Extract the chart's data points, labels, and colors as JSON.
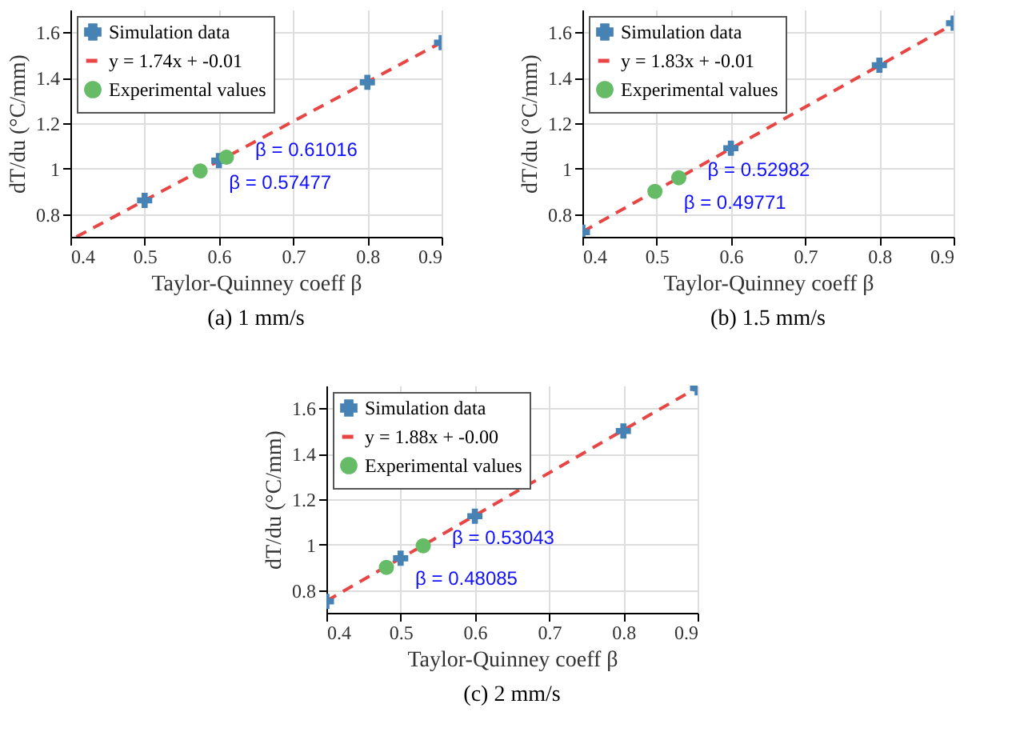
{
  "chart_data": [
    {
      "type": "scatter",
      "title": "(a) 1 mm/s",
      "xlabel": "Taylor-Quinney coeff β",
      "ylabel": "dT/du (°C/mm)",
      "xlim": [
        0.4,
        0.9
      ],
      "ylim": [
        0.7,
        1.7
      ],
      "xticks": [
        0.4,
        0.5,
        0.6,
        0.7,
        0.8,
        0.9
      ],
      "yticks": [
        0.8,
        1,
        1.2,
        1.4,
        1.6
      ],
      "grid": true,
      "legend": "top left",
      "series": [
        {
          "name": "Simulation data",
          "color": "#4682b4",
          "marker": "cross",
          "x": [
            0.5,
            0.6,
            0.8,
            0.9
          ],
          "values": [
            0.86,
            1.035,
            1.38,
            1.555
          ]
        },
        {
          "name": "y = 1.74x + -0.01",
          "type": "line",
          "color": "#e84545",
          "marker": "none",
          "line_style": "dashed",
          "x": [
            0.408,
            0.9
          ],
          "values": [
            0.7,
            1.556
          ]
        },
        {
          "name": "Experimental values",
          "color": "#66bb66",
          "marker": "circle",
          "x": [
            0.57477,
            0.61016
          ],
          "values": [
            0.99,
            1.05
          ]
        }
      ],
      "annotations": [
        {
          "text": "β = 0.61016",
          "x": 0.61016,
          "y": 1.05
        },
        {
          "text": "β = 0.57477",
          "x": 0.57477,
          "y": 0.99
        }
      ]
    },
    {
      "type": "scatter",
      "title": "(b) 1.5 mm/s",
      "xlabel": "Taylor-Quinney coeff β",
      "ylabel": "dT/du (°C/mm)",
      "xlim": [
        0.4,
        0.9
      ],
      "ylim": [
        0.7,
        1.7
      ],
      "xticks": [
        0.4,
        0.5,
        0.6,
        0.7,
        0.8,
        0.9
      ],
      "yticks": [
        0.8,
        1,
        1.2,
        1.4,
        1.6
      ],
      "grid": true,
      "legend": "top left",
      "series": [
        {
          "name": "Simulation data",
          "color": "#4682b4",
          "marker": "cross",
          "x": [
            0.4,
            0.6,
            0.8,
            0.9
          ],
          "values": [
            0.72,
            1.09,
            1.455,
            1.64
          ]
        },
        {
          "name": "y = 1.83x + -0.01",
          "type": "line",
          "color": "#e84545",
          "marker": "none",
          "line_style": "dashed",
          "x": [
            0.4,
            0.9
          ],
          "values": [
            0.722,
            1.637
          ]
        },
        {
          "name": "Experimental values",
          "color": "#66bb66",
          "marker": "circle",
          "x": [
            0.49771,
            0.52982
          ],
          "values": [
            0.9,
            0.96
          ]
        }
      ],
      "annotations": [
        {
          "text": "β = 0.52982",
          "x": 0.52982,
          "y": 0.96
        },
        {
          "text": "β = 0.49771",
          "x": 0.49771,
          "y": 0.9
        }
      ]
    },
    {
      "type": "scatter",
      "title": "(c) 2 mm/s",
      "xlabel": "Taylor-Quinney coeff β",
      "ylabel": "dT/du (°C/mm)",
      "xlim": [
        0.4,
        0.9
      ],
      "ylim": [
        0.7,
        1.7
      ],
      "xticks": [
        0.4,
        0.5,
        0.6,
        0.7,
        0.8,
        0.9
      ],
      "yticks": [
        0.8,
        1,
        1.2,
        1.4,
        1.6
      ],
      "grid": true,
      "legend": "top left",
      "series": [
        {
          "name": "Simulation data",
          "color": "#4682b4",
          "marker": "cross",
          "x": [
            0.4,
            0.5,
            0.6,
            0.8,
            0.9
          ],
          "values": [
            0.75,
            0.94,
            1.125,
            1.5,
            1.69
          ]
        },
        {
          "name": "y = 1.88x + -0.00",
          "type": "line",
          "color": "#e84545",
          "marker": "none",
          "line_style": "dashed",
          "x": [
            0.4,
            0.9
          ],
          "values": [
            0.752,
            1.692
          ]
        },
        {
          "name": "Experimental values",
          "color": "#66bb66",
          "marker": "circle",
          "x": [
            0.48085,
            0.53043
          ],
          "values": [
            0.9,
            0.995
          ]
        }
      ],
      "annotations": [
        {
          "text": "β = 0.53043",
          "x": 0.53043,
          "y": 0.995
        },
        {
          "text": "β = 0.48085",
          "x": 0.48085,
          "y": 0.9
        }
      ]
    }
  ]
}
